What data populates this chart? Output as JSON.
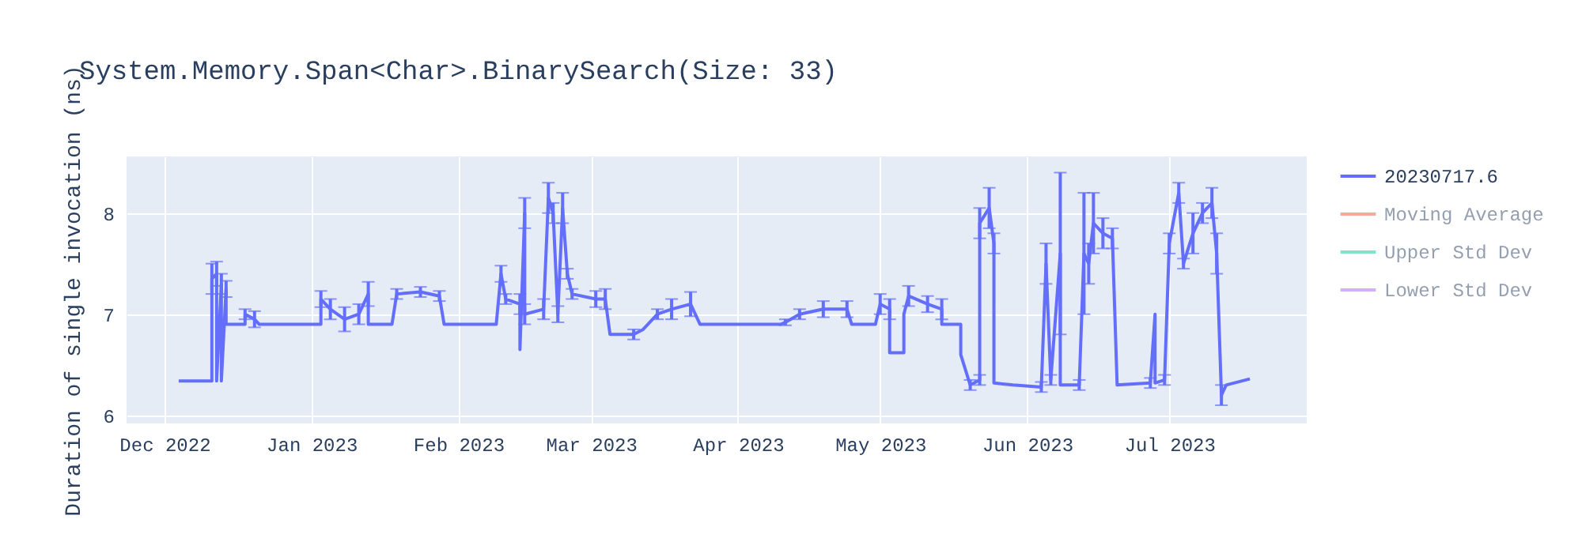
{
  "chart_data": {
    "type": "line",
    "title": "System.Memory.Span<Char>.BinarySearch(Size: 33)",
    "ylabel": "Duration of single invocation (ns)",
    "xlim": [
      "2022-11-23",
      "2023-07-30"
    ],
    "xticks": [
      {
        "value": "2022-12-01",
        "label": "Dec 2022"
      },
      {
        "value": "2023-01-01",
        "label": "Jan 2023"
      },
      {
        "value": "2023-02-01",
        "label": "Feb 2023"
      },
      {
        "value": "2023-03-01",
        "label": "Mar 2023"
      },
      {
        "value": "2023-04-01",
        "label": "Apr 2023"
      },
      {
        "value": "2023-05-01",
        "label": "May 2023"
      },
      {
        "value": "2023-06-01",
        "label": "Jun 2023"
      },
      {
        "value": "2023-07-01",
        "label": "Jul 2023"
      }
    ],
    "ylim": [
      5.92,
      8.56
    ],
    "yticks": [
      6,
      7,
      8
    ],
    "grid": true,
    "legend": "right",
    "marker": "none",
    "line_style": "solid",
    "series": [
      {
        "name": "20230717.6",
        "color": "#636efa",
        "x": [
          "2022-12-04",
          "2022-12-11",
          "2022-12-11",
          "2022-12-12",
          "2022-12-12",
          "2022-12-13",
          "2022-12-13",
          "2022-12-14",
          "2022-12-14",
          "2022-12-18",
          "2022-12-18",
          "2022-12-20",
          "2022-12-21",
          "2023-01-03",
          "2023-01-03",
          "2023-01-05",
          "2023-01-08",
          "2023-01-11",
          "2023-01-13",
          "2023-01-13",
          "2023-01-18",
          "2023-01-19",
          "2023-01-24",
          "2023-01-28",
          "2023-01-29",
          "2023-02-09",
          "2023-02-10",
          "2023-02-11",
          "2023-02-14",
          "2023-02-14",
          "2023-02-15",
          "2023-02-15",
          "2023-02-19",
          "2023-02-20",
          "2023-02-21",
          "2023-02-22",
          "2023-02-23",
          "2023-02-24",
          "2023-02-25",
          "2023-03-02",
          "2023-03-04",
          "2023-03-05",
          "2023-03-10",
          "2023-03-12",
          "2023-03-15",
          "2023-03-18",
          "2023-03-22",
          "2023-03-24",
          "2023-04-10",
          "2023-04-11",
          "2023-04-14",
          "2023-04-19",
          "2023-04-24",
          "2023-04-25",
          "2023-04-30",
          "2023-05-01",
          "2023-05-03",
          "2023-05-03",
          "2023-05-06",
          "2023-05-06",
          "2023-05-07",
          "2023-05-11",
          "2023-05-14",
          "2023-05-14",
          "2023-05-18",
          "2023-05-18",
          "2023-05-20",
          "2023-05-22",
          "2023-05-22",
          "2023-05-24",
          "2023-05-25",
          "2023-05-25",
          "2023-05-29",
          "2023-06-04",
          "2023-06-05",
          "2023-06-06",
          "2023-06-08",
          "2023-06-08",
          "2023-06-12",
          "2023-06-13",
          "2023-06-14",
          "2023-06-15",
          "2023-06-17",
          "2023-06-19",
          "2023-06-20",
          "2023-06-27",
          "2023-06-28",
          "2023-06-28",
          "2023-06-30",
          "2023-07-01",
          "2023-07-03",
          "2023-07-04",
          "2023-07-06",
          "2023-07-08",
          "2023-07-10",
          "2023-07-11",
          "2023-07-12",
          "2023-07-13",
          "2023-07-18"
        ],
        "values": [
          6.34,
          6.34,
          7.35,
          7.4,
          6.34,
          7.3,
          6.34,
          7.25,
          6.9,
          6.9,
          7.0,
          6.95,
          6.9,
          6.9,
          7.15,
          7.05,
          6.95,
          7.0,
          7.2,
          6.9,
          6.9,
          7.2,
          7.22,
          7.18,
          6.9,
          6.9,
          7.4,
          7.15,
          7.1,
          6.65,
          8.0,
          7.0,
          7.05,
          8.15,
          8.0,
          7.0,
          8.05,
          7.4,
          7.2,
          7.15,
          7.15,
          6.8,
          6.8,
          6.85,
          7.0,
          7.05,
          7.1,
          6.9,
          6.9,
          6.92,
          7.0,
          7.05,
          7.05,
          6.9,
          6.9,
          7.1,
          7.05,
          6.62,
          6.62,
          7.0,
          7.18,
          7.1,
          7.05,
          6.9,
          6.9,
          6.6,
          6.3,
          6.35,
          7.9,
          8.05,
          7.7,
          6.32,
          6.3,
          6.28,
          7.5,
          6.35,
          7.6,
          6.3,
          6.3,
          7.6,
          7.5,
          7.9,
          7.8,
          7.75,
          6.3,
          6.32,
          7.0,
          6.32,
          6.35,
          7.7,
          8.2,
          7.5,
          7.8,
          8.0,
          8.1,
          7.6,
          6.2,
          6.3,
          6.36
        ],
        "errors": [
          null,
          null,
          0.15,
          0.12,
          null,
          0.1,
          null,
          0.08,
          null,
          null,
          0.05,
          0.08,
          null,
          null,
          0.08,
          0.1,
          0.12,
          0.1,
          0.12,
          null,
          null,
          0.05,
          0.05,
          0.05,
          null,
          null,
          0.08,
          0.05,
          0.1,
          null,
          0.15,
          0.1,
          0.1,
          0.15,
          0.1,
          0.08,
          0.15,
          0.05,
          0.05,
          0.08,
          0.1,
          null,
          0.05,
          null,
          0.05,
          0.1,
          0.12,
          null,
          null,
          0.03,
          0.05,
          0.08,
          0.08,
          null,
          null,
          0.1,
          0.1,
          null,
          null,
          null,
          0.1,
          0.08,
          0.1,
          null,
          null,
          null,
          0.05,
          0.05,
          0.15,
          0.2,
          0.1,
          null,
          null,
          0.05,
          0.2,
          0.05,
          0.8,
          null,
          0.05,
          0.6,
          0.2,
          0.3,
          0.15,
          0.1,
          null,
          0.05,
          null,
          null,
          0.05,
          0.1,
          0.1,
          0.05,
          0.2,
          0.1,
          0.15,
          0.2,
          0.1,
          null,
          null
        ]
      },
      {
        "name": "Moving Average",
        "color": "#ef553b"
      },
      {
        "name": "Upper Std Dev",
        "color": "#00cc96"
      },
      {
        "name": "Lower Std Dev",
        "color": "#ab63fa"
      }
    ]
  }
}
